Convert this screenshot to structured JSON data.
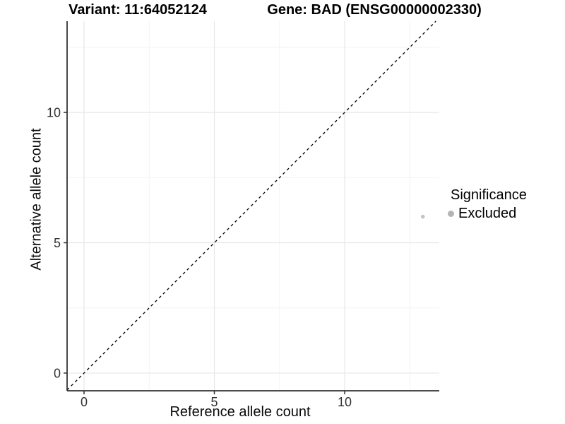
{
  "titles": {
    "variant": "Variant: 11:64052124",
    "gene": "Gene: BAD (ENSG00000002330)"
  },
  "axes": {
    "x_label": "Reference allele count",
    "y_label": "Alternative allele count"
  },
  "legend": {
    "title": "Significance",
    "items": [
      {
        "label": "Excluded",
        "color": "#b4b4b4"
      }
    ]
  },
  "colors": {
    "background": "#ffffff",
    "grid_major": "#e7e7e7",
    "grid_minor": "#f3f3f3",
    "axis_line": "#333333",
    "tick_label": "#333333",
    "reference_line": "#000000",
    "point_excluded": "#c4c4c4"
  },
  "chart_data": {
    "type": "scatter",
    "title": "Variant: 11:64052124   /   Gene: BAD (ENSG00000002330)",
    "xlabel": "Reference allele count",
    "ylabel": "Alternative allele count",
    "points": [
      {
        "x": 13,
        "y": 6,
        "series": "Excluded",
        "color": "#c4c4c4",
        "radius": 2.8
      }
    ],
    "reference_line": {
      "kind": "identity",
      "slope": 1,
      "intercept": 0,
      "style": "dashed",
      "color": "#000000"
    },
    "x_ticks": [
      0,
      5,
      10
    ],
    "y_ticks": [
      0,
      5,
      10
    ],
    "x_minor_ticks": [
      2.5,
      7.5,
      12.5
    ],
    "y_minor_ticks": [
      2.5,
      7.5,
      12.5
    ],
    "xlim": [
      -0.65,
      13.63
    ],
    "ylim": [
      -0.68,
      13.5
    ],
    "grid": true,
    "legend_position": "right",
    "legend_title": "Significance",
    "legend_items": [
      "Excluded"
    ]
  }
}
